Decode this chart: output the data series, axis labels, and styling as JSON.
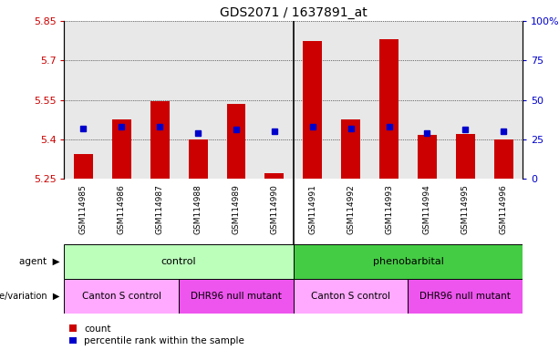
{
  "title": "GDS2071 / 1637891_at",
  "samples": [
    "GSM114985",
    "GSM114986",
    "GSM114987",
    "GSM114988",
    "GSM114989",
    "GSM114990",
    "GSM114991",
    "GSM114992",
    "GSM114993",
    "GSM114994",
    "GSM114995",
    "GSM114996"
  ],
  "bar_values": [
    5.345,
    5.475,
    5.545,
    5.4,
    5.535,
    5.27,
    5.775,
    5.475,
    5.78,
    5.415,
    5.42,
    5.4
  ],
  "percentile_values": [
    32,
    33,
    33,
    29,
    31,
    30,
    33,
    32,
    33,
    29,
    31,
    30
  ],
  "bar_bottom": 5.25,
  "ylim_left": [
    5.25,
    5.85
  ],
  "ylim_right": [
    0,
    100
  ],
  "yticks_left": [
    5.25,
    5.4,
    5.55,
    5.7,
    5.85
  ],
  "yticks_right": [
    0,
    25,
    50,
    75,
    100
  ],
  "ytick_labels_left": [
    "5.25",
    "5.4",
    "5.55",
    "5.7",
    "5.85"
  ],
  "ytick_labels_right": [
    "0",
    "25",
    "50",
    "75",
    "100%"
  ],
  "bar_color": "#cc0000",
  "percentile_color": "#0000cc",
  "agent_groups": [
    {
      "label": "control",
      "start": 0,
      "end": 6,
      "color": "#bbffbb"
    },
    {
      "label": "phenobarbital",
      "start": 6,
      "end": 12,
      "color": "#44cc44"
    }
  ],
  "genotype_groups": [
    {
      "label": "Canton S control",
      "start": 0,
      "end": 3,
      "color": "#ffaaff"
    },
    {
      "label": "DHR96 null mutant",
      "start": 3,
      "end": 6,
      "color": "#ee55ee"
    },
    {
      "label": "Canton S control",
      "start": 6,
      "end": 9,
      "color": "#ffaaff"
    },
    {
      "label": "DHR96 null mutant",
      "start": 9,
      "end": 12,
      "color": "#ee55ee"
    }
  ],
  "legend_items": [
    {
      "label": "count",
      "color": "#cc0000"
    },
    {
      "label": "percentile rank within the sample",
      "color": "#0000cc"
    }
  ],
  "background_color": "#ffffff",
  "plot_bg_color": "#e8e8e8",
  "xtick_bg_color": "#cccccc"
}
